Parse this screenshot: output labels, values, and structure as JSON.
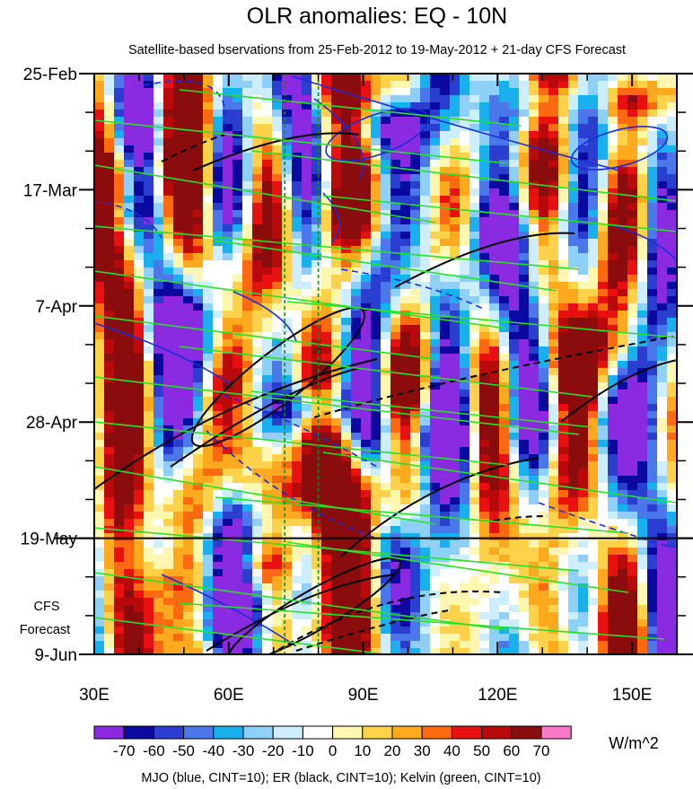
{
  "chart_data": {
    "type": "heatmap",
    "title": "OLR anomalies: EQ - 10N",
    "subtitle": "Satellite-based bservations from 25-Feb-2012 to 19-May-2012 + 21-day CFS Forecast",
    "x_ticks": [
      {
        "value": 30,
        "label": "30E"
      },
      {
        "value": 60,
        "label": "60E"
      },
      {
        "value": 90,
        "label": "90E"
      },
      {
        "value": 120,
        "label": "120E"
      },
      {
        "value": 150,
        "label": "150E"
      }
    ],
    "xlim": [
      30,
      160
    ],
    "y_ticks": [
      {
        "day": 0,
        "label": "25-Feb"
      },
      {
        "day": 21,
        "label": "17-Mar"
      },
      {
        "day": 42,
        "label": "7-Apr"
      },
      {
        "day": 63,
        "label": "28-Apr"
      },
      {
        "day": 84,
        "label": "19-May"
      },
      {
        "day": 105,
        "label": "9-Jun"
      }
    ],
    "forecast_label_lines": [
      "CFS",
      "Forecast"
    ],
    "forecast_start_day": 84,
    "reference_lines_lon": [
      72.5,
      80
    ],
    "colorbar": {
      "unit": "W/m^2",
      "levels": [
        "-70",
        "-60",
        "-50",
        "-40",
        "-30",
        "-20",
        "-10",
        "0",
        "10",
        "20",
        "30",
        "40",
        "50",
        "60",
        "70"
      ],
      "colors": [
        "#8a2be2",
        "#0a0aa0",
        "#2a3fd0",
        "#4a78ea",
        "#1ab0ee",
        "#8fd0f8",
        "#cdeefe",
        "#ffffff",
        "#fff7b0",
        "#ffd24a",
        "#ffaa1e",
        "#ff6a10",
        "#e81010",
        "#b80a0a",
        "#8a0c0c",
        "#f97ac8"
      ]
    },
    "footer": "MJO (blue, CINT=10); ER (black, CINT=10); Kelvin (green, CINT=10)",
    "contour_colors": {
      "mjo": "#1a2cd8",
      "er": "#000000",
      "kelvin": "#28e028"
    }
  }
}
